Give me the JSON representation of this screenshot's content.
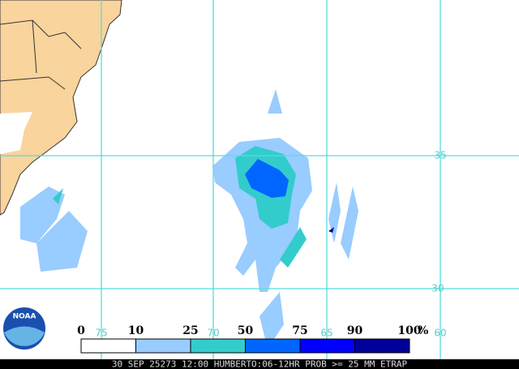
{
  "map": {
    "lat_labels": [
      "35",
      "30"
    ],
    "lon_labels": [
      "75",
      "70",
      "65",
      "60"
    ],
    "logo": "NOAA"
  },
  "legend": {
    "bins": [
      0,
      10,
      25,
      50,
      75,
      90,
      100
    ],
    "unit": "%",
    "colors": [
      "#ffffff",
      "#99ccff",
      "#33cccc",
      "#0066ff",
      "#0000ff",
      "#000099"
    ]
  },
  "caption": "30 SEP 25273 12:00 HUMBERTO:06-12HR PROB >= 25 MM ETRAP"
}
